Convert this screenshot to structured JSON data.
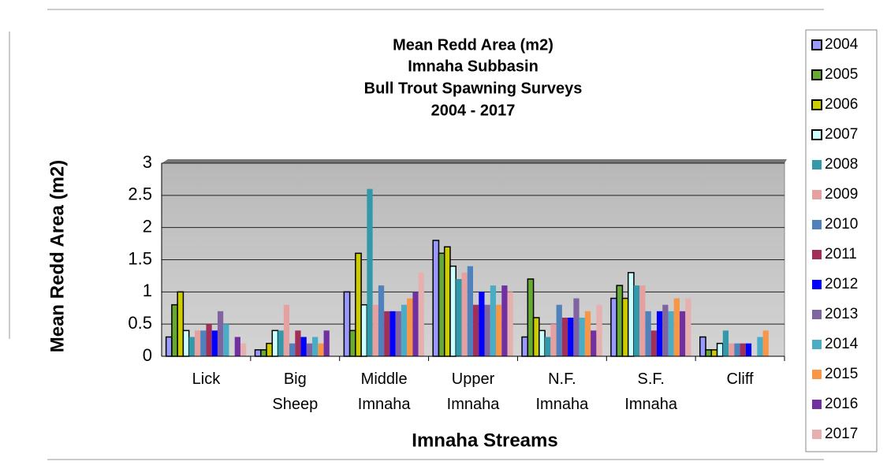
{
  "chart_data": {
    "type": "bar",
    "title": [
      "Mean Redd Area (m2)",
      "Imnaha Subbasin",
      "Bull Trout Spawning Surveys",
      "2004 - 2017"
    ],
    "y_label": "Mean Redd Area (m2)",
    "x_label": "Imnaha Streams",
    "categories": [
      "Lick",
      "Big Sheep",
      "Middle Imnaha",
      "Upper Imnaha",
      "N.F. Imnaha",
      "S.F. Imnaha",
      "Cliff"
    ],
    "ylim": [
      0,
      3
    ],
    "yticks": [
      0,
      0.5,
      1,
      1.5,
      2,
      2.5,
      3
    ],
    "grid": true,
    "series": [
      {
        "name": "2004",
        "color": "#9999ff",
        "values": [
          0.3,
          0.1,
          1.0,
          1.8,
          0.3,
          0.9,
          0.3
        ]
      },
      {
        "name": "2005",
        "color": "#66aa33",
        "values": [
          0.8,
          0.1,
          0.4,
          1.6,
          1.2,
          1.1,
          0.1
        ]
      },
      {
        "name": "2006",
        "color": "#cccc00",
        "values": [
          1.0,
          0.2,
          1.6,
          1.7,
          0.6,
          0.9,
          0.1
        ]
      },
      {
        "name": "2007",
        "color": "#ccffff",
        "values": [
          0.4,
          0.4,
          0.8,
          1.4,
          0.4,
          1.3,
          0.2
        ]
      },
      {
        "name": "2008",
        "color": "#3399aa",
        "values": [
          0.3,
          0.4,
          2.6,
          1.2,
          0.3,
          1.1,
          0.4
        ]
      },
      {
        "name": "2009",
        "color": "#e6a0a0",
        "values": [
          0.4,
          0.8,
          0.8,
          1.3,
          0.5,
          1.1,
          0.2
        ]
      },
      {
        "name": "2010",
        "color": "#4f81bd",
        "values": [
          0.4,
          0.2,
          1.1,
          1.4,
          0.8,
          0.7,
          0.2
        ]
      },
      {
        "name": "2011",
        "color": "#a0305a",
        "values": [
          0.5,
          0.4,
          0.7,
          0.8,
          0.6,
          0.4,
          0.2
        ]
      },
      {
        "name": "2012",
        "color": "#0000ff",
        "values": [
          0.4,
          0.3,
          0.7,
          1.0,
          0.6,
          0.7,
          0.2
        ]
      },
      {
        "name": "2013",
        "color": "#8064a2",
        "values": [
          0.7,
          0.2,
          0.7,
          0.8,
          0.9,
          0.8,
          0
        ]
      },
      {
        "name": "2014",
        "color": "#4bacc6",
        "values": [
          0.5,
          0.3,
          0.8,
          1.1,
          0.6,
          0.7,
          0.3
        ]
      },
      {
        "name": "2015",
        "color": "#f79646",
        "values": [
          0,
          0.2,
          0.9,
          0.8,
          0.7,
          0.9,
          0.4
        ]
      },
      {
        "name": "2016",
        "color": "#7030a0",
        "values": [
          0.3,
          0.4,
          1.0,
          1.1,
          0.4,
          0.7,
          0
        ]
      },
      {
        "name": "2017",
        "color": "#e6b0b0",
        "values": [
          0.2,
          0,
          1.3,
          1.0,
          0.8,
          0.9,
          0
        ]
      }
    ]
  }
}
